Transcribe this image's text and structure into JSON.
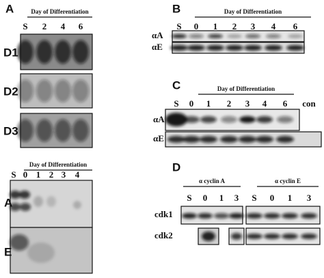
{
  "panel_a": {
    "label": "A",
    "top": {
      "header": "Day of Differentiation",
      "lanes": [
        "S",
        "2",
        "4",
        "6"
      ],
      "rows": [
        "D1",
        "D2",
        "D3"
      ]
    },
    "bottom": {
      "header": "Day of Differentiation",
      "lanes": [
        "S",
        "0",
        "1",
        "2",
        "3",
        "4"
      ],
      "rows": [
        "A",
        "E"
      ]
    }
  },
  "panel_b": {
    "label": "B",
    "header": "Day of Differentiation",
    "lanes": [
      "S",
      "0",
      "1",
      "2",
      "3",
      "4",
      "6"
    ],
    "rows": [
      "αA",
      "αE"
    ]
  },
  "panel_c": {
    "label": "C",
    "header": "Day of Differentiation",
    "lanes": [
      "S",
      "0",
      "1",
      "2",
      "3",
      "4",
      "6"
    ],
    "control": "con",
    "rows": [
      "αA",
      "αE"
    ]
  },
  "panel_d": {
    "label": "D",
    "groups": [
      {
        "header": "α cyclin A",
        "lanes": [
          "S",
          "0",
          "1",
          "3"
        ]
      },
      {
        "header": "α cyclin E",
        "lanes": [
          "S",
          "0",
          "1",
          "3"
        ]
      }
    ],
    "rows": [
      "cdk1",
      "cdk2"
    ]
  }
}
